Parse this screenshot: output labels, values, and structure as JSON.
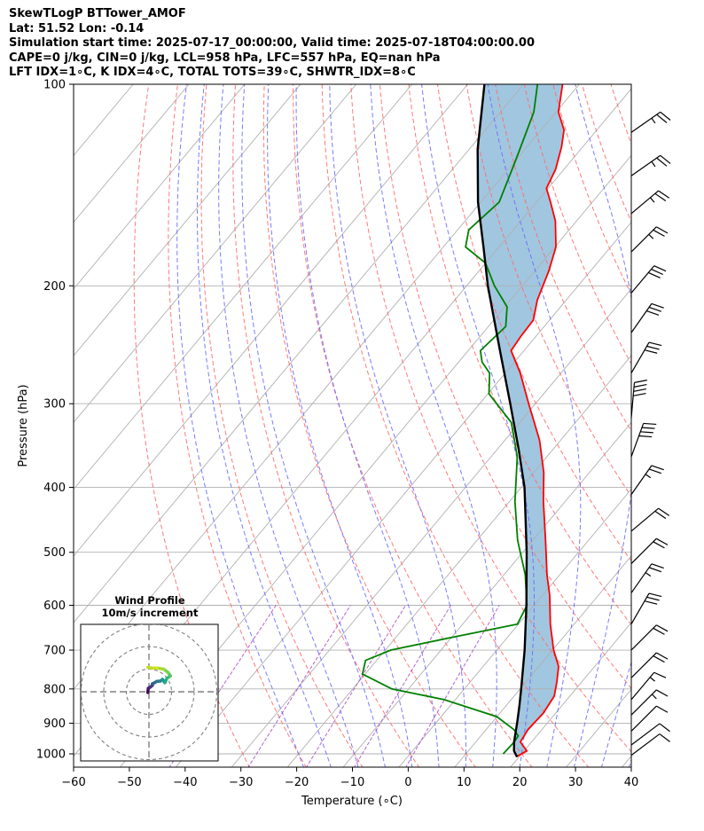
{
  "header": {
    "line1": "SkewTLogP BTTower_AMOF",
    "line2": "Lat: 51.52   Lon: -0.14",
    "line3": "Simulation start time: 2025-07-17_00:00:00, Valid time: 2025-07-18T04:00:00.00",
    "line4": "CAPE=0 j/kg, CIN=0 j/kg, LCL=958 hPa, LFC=557 hPa, EQ=nan hPa",
    "line5": "LFT IDX=1∘C, K IDX=4∘C, TOTAL TOTS=39∘C, SHWTR_IDX=8∘C"
  },
  "chart_data": [
    {
      "type": "line",
      "title": "SkewTLogP BTTower_AMOF",
      "xlabel": "Temperature (∘C)",
      "ylabel": "Pressure (hPa)",
      "xlim": [
        -60,
        40
      ],
      "ylim": [
        1050,
        100
      ],
      "yscale": "log",
      "skew": true,
      "x_ticks": [
        -60,
        -50,
        -40,
        -30,
        -20,
        -10,
        0,
        10,
        20,
        30,
        40
      ],
      "x_tick_labels": [
        "−60",
        "−50",
        "−40",
        "−30",
        "−20",
        "−10",
        "0",
        "10",
        "20",
        "30",
        "40"
      ],
      "y_ticks": [
        1000,
        900,
        800,
        700,
        600,
        500,
        400,
        300,
        200,
        100
      ],
      "y_tick_labels": [
        "1000",
        "900",
        "800",
        "700",
        "600",
        "500",
        "400",
        "300",
        "200",
        "100"
      ],
      "grid": true,
      "colors": {
        "temperature": "#ff0000",
        "dewpoint": "#008000",
        "parcel": "#000000",
        "shading": "#a1c6e0",
        "dry_adiabat": "#ff6a6a",
        "moist_adiabat": "#6b6bff",
        "mixing_ratio": "#a040c0",
        "isotherm": "#b0b0b0"
      },
      "series": [
        {
          "name": "Temperature",
          "points": [
            [
              1010,
              19.5
            ],
            [
              990,
              20.5
            ],
            [
              960,
              18
            ],
            [
              920,
              17.5
            ],
            [
              870,
              17.8
            ],
            [
              820,
              17.2
            ],
            [
              780,
              15.5
            ],
            [
              740,
              13.5
            ],
            [
              700,
              10.2
            ],
            [
              640,
              5.7
            ],
            [
              580,
              1.3
            ],
            [
              540,
              -2.3
            ],
            [
              480,
              -7.7
            ],
            [
              420,
              -13.9
            ],
            [
              380,
              -18.2
            ],
            [
              340,
              -23.8
            ],
            [
              300,
              -31.2
            ],
            [
              270,
              -37.3
            ],
            [
              250,
              -42.3
            ],
            [
              238,
              -42.7
            ],
            [
              225,
              -42.9
            ],
            [
              210,
              -45.2
            ],
            [
              190,
              -47.5
            ],
            [
              175,
              -49.8
            ],
            [
              160,
              -53.8
            ],
            [
              150,
              -57.5
            ],
            [
              143,
              -60.3
            ],
            [
              134,
              -61.5
            ],
            [
              124,
              -63.8
            ],
            [
              117,
              -65.9
            ],
            [
              110,
              -69.6
            ],
            [
              100,
              -73.0
            ]
          ]
        },
        {
          "name": "Dewpoint",
          "points": [
            [
              1000,
              16.7
            ],
            [
              980,
              16.8
            ],
            [
              960,
              16.9
            ],
            [
              940,
              16.7
            ],
            [
              920,
              15.0
            ],
            [
              880,
              10.0
            ],
            [
              830,
              -2.0
            ],
            [
              800,
              -13.0
            ],
            [
              760,
              -20.5
            ],
            [
              725,
              -22.0
            ],
            [
              700,
              -19.0
            ],
            [
              670,
              -10.0
            ],
            [
              640,
              -0.2
            ],
            [
              600,
              -1.3
            ],
            [
              540,
              -6.2
            ],
            [
              480,
              -12.7
            ],
            [
              420,
              -19.0
            ],
            [
              360,
              -25.3
            ],
            [
              320,
              -31.5
            ],
            [
              290,
              -39.8
            ],
            [
              270,
              -42.8
            ],
            [
              260,
              -45.8
            ],
            [
              250,
              -47.8
            ],
            [
              230,
              -46.9
            ],
            [
              215,
              -49.6
            ],
            [
              200,
              -55.0
            ],
            [
              185,
              -60.0
            ],
            [
              175,
              -66.0
            ],
            [
              165,
              -68.0
            ],
            [
              150,
              -66.7
            ],
            [
              130,
              -70.0
            ],
            [
              110,
              -74.0
            ],
            [
              100,
              -77.5
            ]
          ]
        },
        {
          "name": "Parcel",
          "points": [
            [
              1010,
              19.6
            ],
            [
              990,
              18.2
            ],
            [
              958,
              16.8
            ],
            [
              900,
              14.6
            ],
            [
              850,
              12.5
            ],
            [
              800,
              10.2
            ],
            [
              700,
              5.0
            ],
            [
              600,
              -1.4
            ],
            [
              500,
              -9.3
            ],
            [
              400,
              -19.4
            ],
            [
              350,
              -26.3
            ],
            [
              300,
              -34.5
            ],
            [
              250,
              -44.3
            ],
            [
              200,
              -56.2
            ],
            [
              175,
              -62.8
            ],
            [
              150,
              -70.5
            ],
            [
              125,
              -78.5
            ],
            [
              100,
              -87.0
            ]
          ]
        }
      ],
      "winds": [
        {
          "p": 1005,
          "dir": 233,
          "spd": 10
        },
        {
          "p": 970,
          "dir": 233,
          "spd": 11
        },
        {
          "p": 925,
          "dir": 225,
          "spd": 14
        },
        {
          "p": 875,
          "dir": 225,
          "spd": 15
        },
        {
          "p": 830,
          "dir": 220,
          "spd": 17
        },
        {
          "p": 770,
          "dir": 225,
          "spd": 20
        },
        {
          "p": 700,
          "dir": 225,
          "spd": 20
        },
        {
          "p": 640,
          "dir": 210,
          "spd": 30
        },
        {
          "p": 575,
          "dir": 215,
          "spd": 25
        },
        {
          "p": 520,
          "dir": 225,
          "spd": 22
        },
        {
          "p": 465,
          "dir": 230,
          "spd": 20
        },
        {
          "p": 410,
          "dir": 215,
          "spd": 25
        },
        {
          "p": 360,
          "dir": 200,
          "spd": 40
        },
        {
          "p": 315,
          "dir": 185,
          "spd": 40
        },
        {
          "p": 270,
          "dir": 210,
          "spd": 30
        },
        {
          "p": 235,
          "dir": 215,
          "spd": 30
        },
        {
          "p": 205,
          "dir": 220,
          "spd": 30
        },
        {
          "p": 178,
          "dir": 225,
          "spd": 25
        },
        {
          "p": 156,
          "dir": 230,
          "spd": 25
        },
        {
          "p": 137,
          "dir": 235,
          "spd": 25
        },
        {
          "p": 118,
          "dir": 235,
          "spd": 25
        }
      ]
    },
    {
      "type": "line",
      "title": "Wind Profile",
      "subtitle": "10m/s increment",
      "ring_increment": 10,
      "rings": 3,
      "path_uv": [
        [
          -0.5,
          -0.3
        ],
        [
          -0.3,
          1.5
        ],
        [
          0.5,
          2.0
        ],
        [
          1.5,
          2.8
        ],
        [
          1.5,
          3.5
        ],
        [
          2.5,
          4.0
        ],
        [
          3.5,
          4.6
        ],
        [
          5.0,
          4.7
        ],
        [
          6.0,
          5.5
        ],
        [
          7.0,
          4.0
        ],
        [
          8.0,
          6.0
        ],
        [
          9.5,
          7.0
        ],
        [
          8.5,
          8.5
        ],
        [
          6.5,
          10.0
        ],
        [
          3.5,
          10.5
        ],
        [
          1.5,
          10.5
        ],
        [
          -0.5,
          10.8
        ]
      ]
    }
  ]
}
